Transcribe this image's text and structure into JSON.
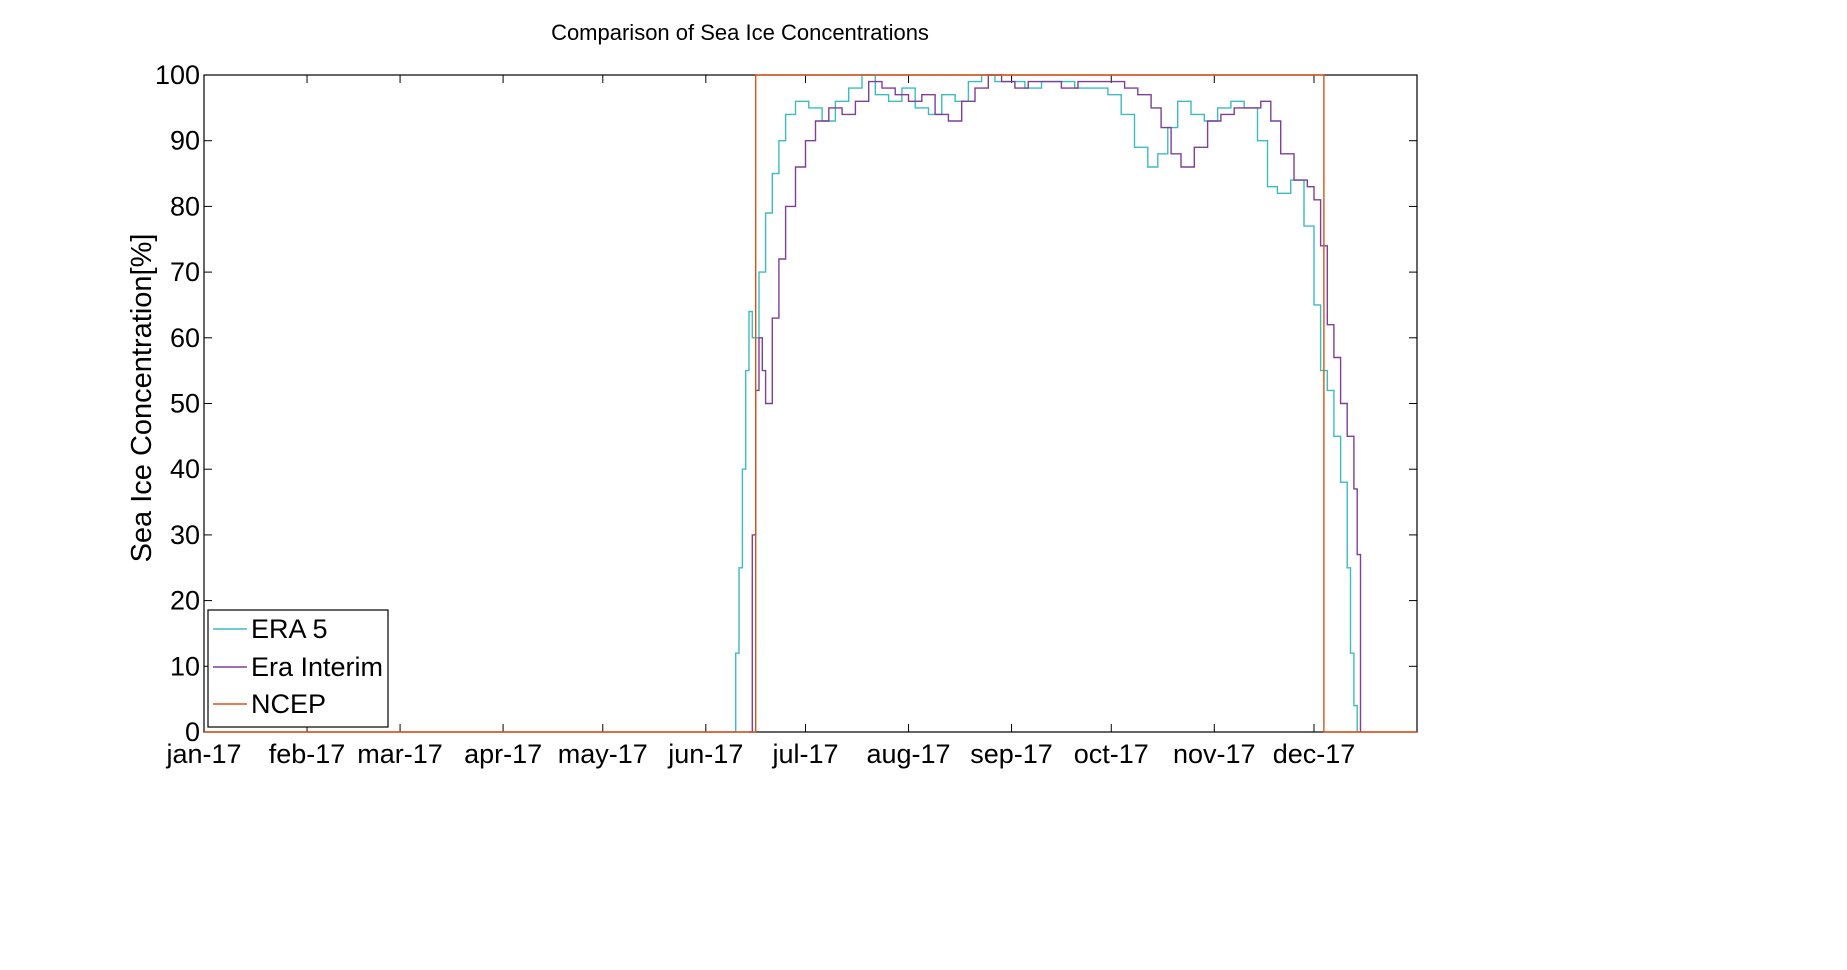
{
  "chart_data": {
    "type": "line",
    "title": "Comparison of Sea Ice Concentrations",
    "xlabel": "",
    "ylabel": "Sea Ice Concentration[%]",
    "x_domain": [
      "2017-01-01",
      "2018-01-01"
    ],
    "ylim": [
      0,
      100
    ],
    "y_ticks": [
      0,
      10,
      20,
      30,
      40,
      50,
      60,
      70,
      80,
      90,
      100
    ],
    "x_ticks": [
      {
        "date": "2017-01-01",
        "label": "jan-17"
      },
      {
        "date": "2017-02-01",
        "label": "feb-17"
      },
      {
        "date": "2017-03-01",
        "label": "mar-17"
      },
      {
        "date": "2017-04-01",
        "label": "apr-17"
      },
      {
        "date": "2017-05-01",
        "label": "may-17"
      },
      {
        "date": "2017-06-01",
        "label": "jun-17"
      },
      {
        "date": "2017-07-01",
        "label": "jul-17"
      },
      {
        "date": "2017-08-01",
        "label": "aug-17"
      },
      {
        "date": "2017-09-01",
        "label": "sep-17"
      },
      {
        "date": "2017-10-01",
        "label": "oct-17"
      },
      {
        "date": "2017-11-01",
        "label": "nov-17"
      },
      {
        "date": "2017-12-01",
        "label": "dec-17"
      }
    ],
    "grid": false,
    "legend_position": "bottom-left",
    "series": [
      {
        "name": "ERA 5",
        "color": "#3cbcc0",
        "x": [
          "2017-06-09",
          "2017-06-10",
          "2017-06-11",
          "2017-06-12",
          "2017-06-13",
          "2017-06-14",
          "2017-06-15",
          "2017-06-17",
          "2017-06-19",
          "2017-06-21",
          "2017-06-23",
          "2017-06-25",
          "2017-06-28",
          "2017-07-02",
          "2017-07-06",
          "2017-07-10",
          "2017-07-14",
          "2017-07-18",
          "2017-07-22",
          "2017-07-26",
          "2017-07-30",
          "2017-08-03",
          "2017-08-07",
          "2017-08-11",
          "2017-08-15",
          "2017-08-19",
          "2017-08-23",
          "2017-08-27",
          "2017-09-01",
          "2017-09-05",
          "2017-09-10",
          "2017-09-15",
          "2017-09-20",
          "2017-09-25",
          "2017-09-30",
          "2017-10-04",
          "2017-10-08",
          "2017-10-12",
          "2017-10-15",
          "2017-10-18",
          "2017-10-21",
          "2017-10-25",
          "2017-10-29",
          "2017-11-02",
          "2017-11-06",
          "2017-11-10",
          "2017-11-14",
          "2017-11-17",
          "2017-11-20",
          "2017-11-24",
          "2017-11-28",
          "2017-12-01",
          "2017-12-03",
          "2017-12-05",
          "2017-12-07",
          "2017-12-09",
          "2017-12-11",
          "2017-12-12",
          "2017-12-13",
          "2017-12-14"
        ],
        "y": [
          0,
          12,
          25,
          40,
          55,
          64,
          60,
          70,
          79,
          85,
          90,
          94,
          96,
          95,
          93,
          96,
          98,
          100,
          97,
          96,
          98,
          95,
          94,
          97,
          96,
          99,
          100,
          99,
          99,
          98,
          99,
          99,
          98,
          98,
          97,
          94,
          89,
          86,
          88,
          92,
          96,
          94,
          93,
          95,
          96,
          95,
          90,
          83,
          82,
          84,
          77,
          65,
          55,
          52,
          45,
          38,
          25,
          12,
          4,
          0
        ]
      },
      {
        "name": "Era Interim",
        "color": "#7f3f98",
        "x": [
          "2017-06-14",
          "2017-06-15",
          "2017-06-16",
          "2017-06-17",
          "2017-06-18",
          "2017-06-19",
          "2017-06-21",
          "2017-06-23",
          "2017-06-25",
          "2017-06-28",
          "2017-07-01",
          "2017-07-04",
          "2017-07-08",
          "2017-07-12",
          "2017-07-16",
          "2017-07-20",
          "2017-07-24",
          "2017-07-28",
          "2017-08-01",
          "2017-08-05",
          "2017-08-09",
          "2017-08-13",
          "2017-08-17",
          "2017-08-21",
          "2017-08-25",
          "2017-08-29",
          "2017-09-02",
          "2017-09-06",
          "2017-09-11",
          "2017-09-16",
          "2017-09-21",
          "2017-09-26",
          "2017-10-01",
          "2017-10-05",
          "2017-10-09",
          "2017-10-13",
          "2017-10-16",
          "2017-10-19",
          "2017-10-22",
          "2017-10-26",
          "2017-10-30",
          "2017-11-03",
          "2017-11-07",
          "2017-11-11",
          "2017-11-15",
          "2017-11-18",
          "2017-11-21",
          "2017-11-25",
          "2017-11-29",
          "2017-12-01",
          "2017-12-03",
          "2017-12-05",
          "2017-12-07",
          "2017-12-09",
          "2017-12-11",
          "2017-12-13",
          "2017-12-14",
          "2017-12-15"
        ],
        "y": [
          0,
          30,
          52,
          60,
          55,
          50,
          63,
          72,
          80,
          86,
          90,
          93,
          95,
          94,
          96,
          99,
          98,
          97,
          96,
          97,
          94,
          93,
          96,
          98,
          100,
          99,
          98,
          99,
          99,
          98,
          99,
          99,
          99,
          98,
          97,
          95,
          92,
          88,
          86,
          89,
          93,
          94,
          95,
          95,
          96,
          93,
          88,
          84,
          83,
          81,
          74,
          62,
          57,
          50,
          45,
          37,
          27,
          0
        ]
      },
      {
        "name": "NCEP",
        "color": "#d95319",
        "x": [
          "2017-01-01",
          "2017-06-16",
          "2017-06-16",
          "2017-12-04",
          "2017-12-04",
          "2018-01-01"
        ],
        "y": [
          0,
          0,
          100,
          100,
          0,
          0
        ]
      }
    ]
  }
}
